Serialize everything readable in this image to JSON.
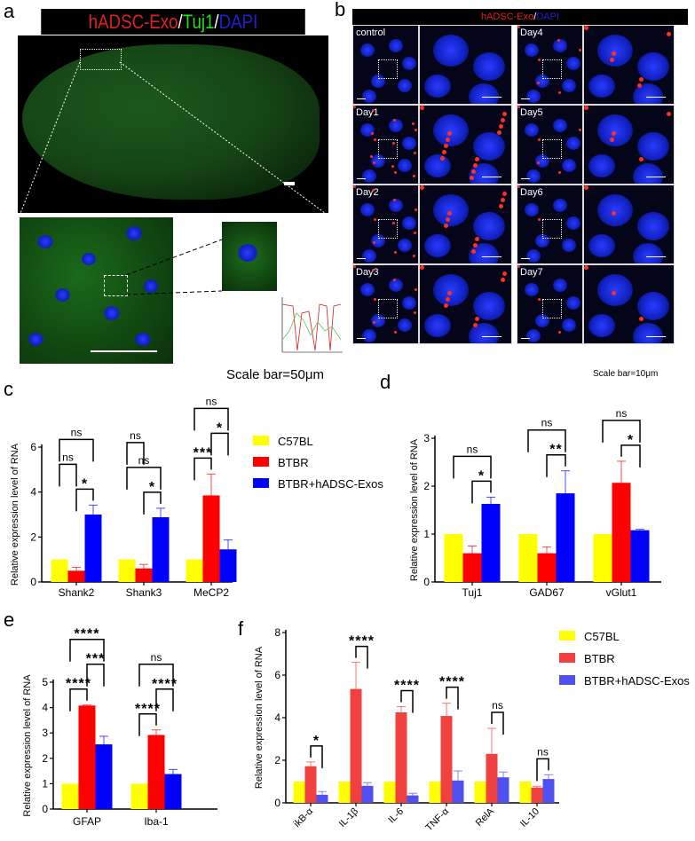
{
  "panel_labels": {
    "a": "a",
    "b": "b",
    "c": "c",
    "d": "d",
    "e": "e",
    "f": "f"
  },
  "panel_a": {
    "title_parts": [
      {
        "text": "hADSC-Exo",
        "color": "#e02020"
      },
      {
        "text": "/",
        "color": "#ffffff"
      },
      {
        "text": "Tuj1",
        "color": "#22dd22"
      },
      {
        "text": "/",
        "color": "#ffffff"
      },
      {
        "text": "DAPI",
        "color": "#2020d0"
      }
    ],
    "scale_bar_text": "Scale bar=50μm"
  },
  "panel_b": {
    "title_parts": [
      {
        "text": "hADSC-Exo",
        "color": "#e02020"
      },
      {
        "text": "/",
        "color": "#ffffff"
      },
      {
        "text": "DAPI",
        "color": "#2020d0"
      }
    ],
    "conditions": [
      "control",
      "Day1",
      "Day2",
      "Day3",
      "Day4",
      "Day5",
      "Day6",
      "Day7"
    ],
    "scale_bar_text": "Scale bar=10μm"
  },
  "legend": [
    "C57BL",
    "BTBR",
    "BTBR+hADSC-Exos"
  ],
  "chart_data": [
    {
      "panel": "c",
      "type": "bar",
      "ylabel": "Relative  expression level of RNA",
      "ylim": [
        0,
        6
      ],
      "yticks": [
        0,
        2,
        4,
        6
      ],
      "categories": [
        "Shank2",
        "Shank3",
        "MeCP2"
      ],
      "colors": [
        "#ffff00",
        "#ff0000",
        "#0000ff"
      ],
      "series": [
        {
          "name": "C57BL",
          "values": [
            1,
            1,
            1
          ],
          "errors": [
            0,
            0,
            0
          ]
        },
        {
          "name": "BTBR",
          "values": [
            0.5,
            0.6,
            3.85
          ],
          "errors": [
            0.15,
            0.18,
            0.95
          ]
        },
        {
          "name": "BTBR+hADSC-Exos",
          "values": [
            3.0,
            2.88,
            1.45
          ],
          "errors": [
            0.42,
            0.4,
            0.42
          ]
        }
      ],
      "significance": [
        [
          {
            "pair": [
              1,
              2
            ],
            "label": "*"
          },
          {
            "pair": [
              0,
              1
            ],
            "label": "ns"
          },
          {
            "pair": [
              0,
              2
            ],
            "label": "ns"
          }
        ],
        [
          {
            "pair": [
              1,
              2
            ],
            "label": "*"
          },
          {
            "pair": [
              0,
              2
            ],
            "label": "ns"
          },
          {
            "pair": [
              0,
              1
            ],
            "label": "ns"
          }
        ],
        [
          {
            "pair": [
              0,
              1
            ],
            "label": "***"
          },
          {
            "pair": [
              1,
              2
            ],
            "label": "*"
          },
          {
            "pair": [
              0,
              2
            ],
            "label": "ns"
          }
        ]
      ],
      "legend": "right"
    },
    {
      "panel": "d",
      "type": "bar",
      "ylabel": "Relative  expression level of RNA",
      "ylim": [
        0,
        3
      ],
      "yticks": [
        0,
        1,
        2,
        3
      ],
      "categories": [
        "Tuj1",
        "GAD67",
        "vGlut1"
      ],
      "colors": [
        "#ffff00",
        "#ff0000",
        "#0000ff"
      ],
      "series": [
        {
          "name": "C57BL",
          "values": [
            1,
            1,
            1
          ],
          "errors": [
            0,
            0,
            0
          ]
        },
        {
          "name": "BTBR",
          "values": [
            0.6,
            0.6,
            2.07
          ],
          "errors": [
            0.15,
            0.13,
            0.45
          ]
        },
        {
          "name": "BTBR+hADSC-Exos",
          "values": [
            1.63,
            1.85,
            1.08
          ],
          "errors": [
            0.14,
            0.47,
            0.02
          ]
        }
      ],
      "significance": [
        [
          {
            "pair": [
              1,
              2
            ],
            "label": "*"
          },
          {
            "pair": [
              0,
              2
            ],
            "label": "ns"
          }
        ],
        [
          {
            "pair": [
              1,
              2
            ],
            "label": "**"
          },
          {
            "pair": [
              0,
              2
            ],
            "label": "ns"
          }
        ],
        [
          {
            "pair": [
              1,
              2
            ],
            "label": "*"
          },
          {
            "pair": [
              0,
              2
            ],
            "label": "ns"
          }
        ]
      ]
    },
    {
      "panel": "e",
      "type": "bar",
      "ylabel": "Relative  expression level of RNA",
      "ylim": [
        0,
        5
      ],
      "yticks": [
        0,
        1,
        2,
        3,
        4,
        5
      ],
      "categories": [
        "GFAP",
        "Iba-1"
      ],
      "colors": [
        "#ffff00",
        "#ff0000",
        "#0000ff"
      ],
      "series": [
        {
          "name": "C57BL",
          "values": [
            1,
            1
          ],
          "errors": [
            0,
            0
          ]
        },
        {
          "name": "BTBR",
          "values": [
            4.08,
            2.92
          ],
          "errors": [
            0.02,
            0.2
          ]
        },
        {
          "name": "BTBR+hADSC-Exos",
          "values": [
            2.55,
            1.38
          ],
          "errors": [
            0.32,
            0.18
          ]
        }
      ],
      "significance": [
        [
          {
            "pair": [
              0,
              1
            ],
            "label": "****"
          },
          {
            "pair": [
              1,
              2
            ],
            "label": "***"
          },
          {
            "pair": [
              0,
              2
            ],
            "label": "****"
          }
        ],
        [
          {
            "pair": [
              0,
              1
            ],
            "label": "****"
          },
          {
            "pair": [
              1,
              2
            ],
            "label": "****"
          },
          {
            "pair": [
              0,
              2
            ],
            "label": "ns"
          }
        ]
      ]
    },
    {
      "panel": "f",
      "type": "bar",
      "ylabel": "Relative  expression level of RNA",
      "ylim": [
        0,
        8
      ],
      "yticks": [
        0,
        2,
        4,
        6,
        8
      ],
      "categories": [
        "ikB-α",
        "IL-1β",
        "IL-6",
        "TNF-α",
        "RelA",
        "IL-10"
      ],
      "colors": [
        "#ffff00",
        "#f04040",
        "#5050f0"
      ],
      "series": [
        {
          "name": "C57BL",
          "values": [
            1,
            1,
            1,
            1,
            1,
            1
          ],
          "errors": [
            0,
            0,
            0,
            0,
            0,
            0
          ]
        },
        {
          "name": "BTBR",
          "values": [
            1.72,
            5.35,
            4.25,
            4.08,
            2.3,
            0.72
          ],
          "errors": [
            0.2,
            1.25,
            0.27,
            0.6,
            1.2,
            0.06
          ]
        },
        {
          "name": "BTBR+hADSC-Exos",
          "values": [
            0.38,
            0.8,
            0.35,
            1.05,
            1.2,
            1.12
          ],
          "errors": [
            0.15,
            0.15,
            0.1,
            0.45,
            0.25,
            0.2
          ]
        }
      ],
      "significance": [
        [
          {
            "pair": [
              1,
              2
            ],
            "label": "*"
          }
        ],
        [
          {
            "pair": [
              1,
              2
            ],
            "label": "****"
          }
        ],
        [
          {
            "pair": [
              1,
              2
            ],
            "label": "****"
          }
        ],
        [
          {
            "pair": [
              1,
              2
            ],
            "label": "****"
          }
        ],
        [
          {
            "pair": [
              1,
              2
            ],
            "label": "ns"
          }
        ],
        [
          {
            "pair": [
              1,
              2
            ],
            "label": "ns"
          }
        ]
      ],
      "legend": "right"
    }
  ]
}
